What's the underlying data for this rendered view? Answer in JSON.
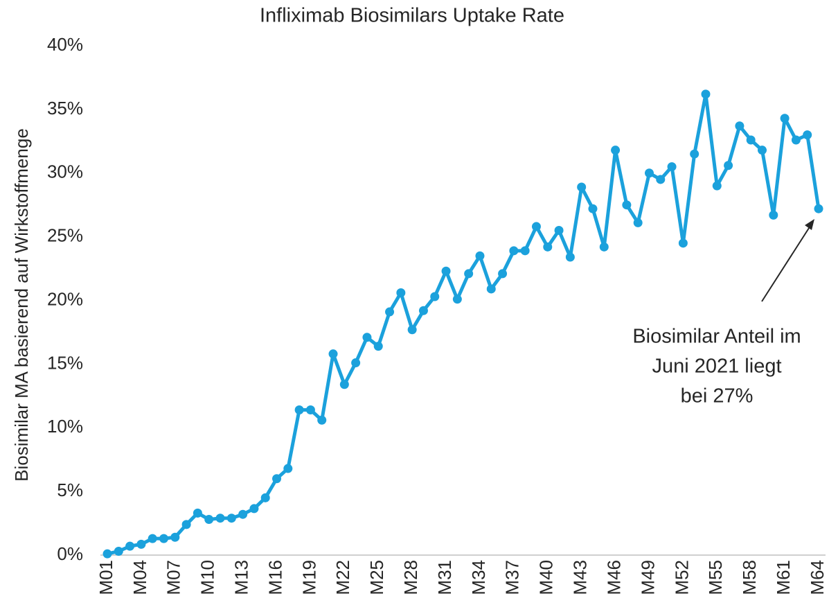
{
  "chart_data": {
    "type": "line",
    "title": "Infliximab Biosimilars Uptake Rate",
    "y_label": "Biosimilar MA basierend auf Wirkstoffmenge",
    "annotation": [
      "Biosimilar Anteil im",
      "Juni 2021 liegt",
      "bei 27%"
    ],
    "color": "#1ba1dc",
    "categories": [
      "M01",
      null,
      null,
      "M04",
      null,
      null,
      "M07",
      null,
      null,
      "M10",
      null,
      null,
      "M13",
      null,
      null,
      "M16",
      null,
      null,
      "M19",
      null,
      null,
      "M22",
      null,
      null,
      "M25",
      null,
      null,
      "M28",
      null,
      null,
      "M31",
      null,
      null,
      "M34",
      null,
      null,
      "M37",
      null,
      null,
      "M40",
      null,
      null,
      "M43",
      null,
      null,
      "M46",
      null,
      null,
      "M49",
      null,
      null,
      "M52",
      null,
      null,
      "M55",
      null,
      null,
      "M58",
      null,
      null,
      "M61",
      null,
      null,
      "M64"
    ],
    "values": [
      0.1,
      0.3,
      0.7,
      0.85,
      1.3,
      1.3,
      1.4,
      2.4,
      3.3,
      2.8,
      2.9,
      2.9,
      3.2,
      3.65,
      4.5,
      6.0,
      6.8,
      11.4,
      11.4,
      10.6,
      15.8,
      13.4,
      15.1,
      17.1,
      16.4,
      19.1,
      20.6,
      17.7,
      19.2,
      20.3,
      22.3,
      20.1,
      22.1,
      23.5,
      20.9,
      22.1,
      23.9,
      23.9,
      25.8,
      24.2,
      25.5,
      23.4,
      28.9,
      27.2,
      24.2,
      31.8,
      27.5,
      26.1,
      30.0,
      29.5,
      30.5,
      24.5,
      31.5,
      36.2,
      29.0,
      30.6,
      33.7,
      32.6,
      31.8,
      26.7,
      34.3,
      32.6,
      33.0,
      27.2
    ],
    "ylim": [
      0,
      40
    ],
    "yticks": [
      {
        "value": 0,
        "label": "0%"
      },
      {
        "value": 5,
        "label": "5%"
      },
      {
        "value": 10,
        "label": "10%"
      },
      {
        "value": 15,
        "label": "15%"
      },
      {
        "value": 20,
        "label": "20%"
      },
      {
        "value": 25,
        "label": "25%"
      },
      {
        "value": 30,
        "label": "30%"
      },
      {
        "value": 35,
        "label": "35%"
      },
      {
        "value": 40,
        "label": "40%"
      }
    ],
    "grid": false
  }
}
